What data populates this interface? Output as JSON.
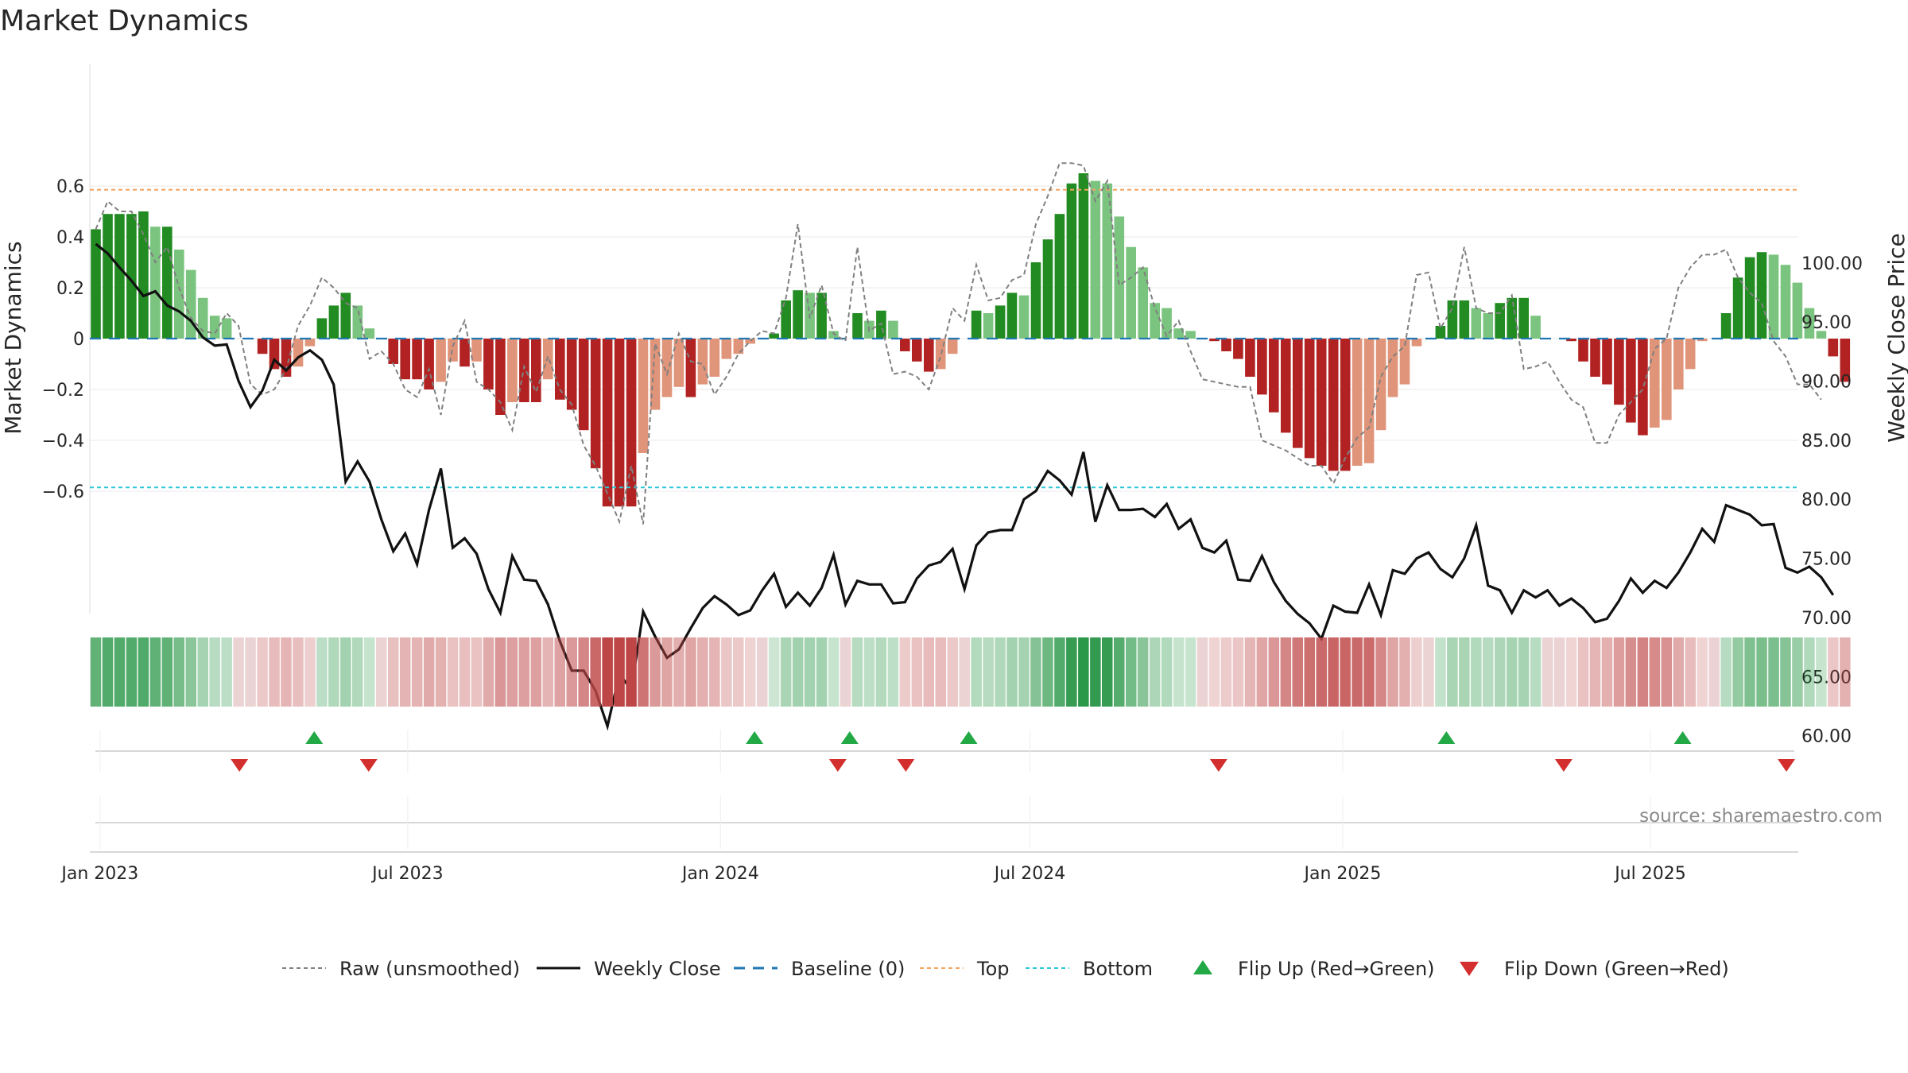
{
  "title": "Market Dynamics",
  "source": "source: sharemaestro.com",
  "colors": {
    "strong_pos": "#228b22",
    "weak_pos": "#7bc47f",
    "strong_neg": "#b22222",
    "weak_neg": "#e0957a",
    "raw": "#808080",
    "close": "#111111",
    "baseline": "#1f77b4",
    "top": "#f4a460",
    "bottom": "#2ec7d6",
    "flip_up": "#22a845",
    "flip_down": "#d32f2f"
  },
  "legend": [
    {
      "key": "raw",
      "label": "Raw (unsmoothed)"
    },
    {
      "key": "close",
      "label": "Weekly Close"
    },
    {
      "key": "baseline",
      "label": "Baseline (0)"
    },
    {
      "key": "top",
      "label": "Top"
    },
    {
      "key": "bottom",
      "label": "Bottom"
    },
    {
      "key": "flip_up",
      "label": "Flip Up (Red→Green)"
    },
    {
      "key": "flip_down",
      "label": "Flip Down (Green→Red)"
    }
  ],
  "chart_data": {
    "type": "bar",
    "title": "Market Dynamics",
    "ylabel": "Market Dynamics",
    "y2label": "Weekly Close Price",
    "ylim": [
      -0.72,
      0.72
    ],
    "y2lim": [
      57.0,
      103.0
    ],
    "y_ticks": [
      0.6,
      0.4,
      0.2,
      0,
      -0.2,
      -0.4,
      -0.6
    ],
    "y_tick_labels": [
      "0.6",
      "0.4",
      "0.2",
      "0",
      "−0.2",
      "−0.4",
      "−0.6"
    ],
    "y2_ticks": [
      100,
      95,
      90,
      85,
      80,
      75,
      70,
      65,
      60
    ],
    "y2_tick_labels": [
      "100.00",
      "95.00",
      "90.00",
      "85.00",
      "80.00",
      "75.00",
      "70.00",
      "65.00",
      "60.00"
    ],
    "x_range": [
      "2022-12-26",
      "2025-09-26"
    ],
    "x_ticks": [
      {
        "date": "2023-01-01",
        "label": "Jan 2023"
      },
      {
        "date": "2023-07-01",
        "label": "Jul 2023"
      },
      {
        "date": "2024-01-01",
        "label": "Jan 2024"
      },
      {
        "date": "2024-07-01",
        "label": "Jul 2024"
      },
      {
        "date": "2025-01-01",
        "label": "Jan 2025"
      },
      {
        "date": "2025-07-01",
        "label": "Jul 2025"
      }
    ],
    "start_week": "2022-12-26",
    "top_level": 0.585,
    "bottom_level": -0.585,
    "grid": true,
    "legend_position": "bottom",
    "momentum": [
      0.43,
      0.49,
      0.49,
      0.49,
      0.5,
      0.44,
      0.44,
      0.35,
      0.27,
      0.16,
      0.09,
      0.08,
      0,
      0,
      -0.06,
      -0.12,
      -0.15,
      -0.11,
      -0.03,
      0.08,
      0.13,
      0.18,
      0.13,
      0.04,
      0,
      -0.1,
      -0.16,
      -0.16,
      -0.2,
      -0.17,
      -0.09,
      -0.11,
      -0.09,
      -0.2,
      -0.3,
      -0.25,
      -0.25,
      -0.25,
      -0.16,
      -0.24,
      -0.28,
      -0.36,
      -0.51,
      -0.66,
      -0.66,
      -0.66,
      -0.45,
      -0.28,
      -0.23,
      -0.19,
      -0.23,
      -0.18,
      -0.15,
      -0.08,
      -0.06,
      -0.02,
      0,
      0.02,
      0.15,
      0.19,
      0.18,
      0.18,
      0.03,
      0,
      0.1,
      0.07,
      0.11,
      0.07,
      -0.05,
      -0.09,
      -0.13,
      -0.12,
      -0.06,
      0,
      0.11,
      0.1,
      0.13,
      0.18,
      0.17,
      0.3,
      0.39,
      0.49,
      0.61,
      0.65,
      0.62,
      0.61,
      0.48,
      0.36,
      0.28,
      0.14,
      0.12,
      0.04,
      0.03,
      0,
      -0.01,
      -0.05,
      -0.08,
      -0.15,
      -0.22,
      -0.29,
      -0.37,
      -0.43,
      -0.47,
      -0.5,
      -0.52,
      -0.52,
      -0.5,
      -0.49,
      -0.36,
      -0.23,
      -0.18,
      -0.03,
      0,
      0.05,
      0.15,
      0.15,
      0.12,
      0.1,
      0.14,
      0.16,
      0.16,
      0.09,
      0,
      0,
      -0.01,
      -0.09,
      -0.15,
      -0.18,
      -0.26,
      -0.33,
      -0.38,
      -0.35,
      -0.32,
      -0.2,
      -0.12,
      -0.01,
      0,
      0.1,
      0.24,
      0.32,
      0.34,
      0.33,
      0.29,
      0.22,
      0.12,
      0.03,
      -0.07,
      -0.17
    ],
    "raw": [
      0.43,
      0.54,
      0.5,
      0.5,
      0.41,
      0.3,
      0.36,
      0.2,
      0.08,
      0.03,
      0.02,
      0.1,
      0.05,
      -0.18,
      -0.22,
      -0.2,
      -0.12,
      0.05,
      0.13,
      0.24,
      0.2,
      0.14,
      0.12,
      -0.08,
      -0.05,
      -0.1,
      -0.2,
      -0.23,
      -0.12,
      -0.3,
      -0.03,
      0.07,
      -0.17,
      -0.2,
      -0.25,
      -0.36,
      -0.11,
      -0.21,
      -0.07,
      -0.2,
      -0.26,
      -0.42,
      -0.5,
      -0.61,
      -0.72,
      -0.5,
      -0.73,
      -0.02,
      -0.14,
      0.02,
      -0.09,
      -0.1,
      -0.22,
      -0.15,
      -0.06,
      -0.01,
      0.03,
      0.02,
      0.16,
      0.45,
      0.08,
      0.21,
      0.02,
      -0.01,
      0.36,
      0.03,
      0.06,
      -0.14,
      -0.13,
      -0.15,
      -0.2,
      -0.07,
      0.12,
      0.07,
      0.29,
      0.15,
      0.16,
      0.23,
      0.25,
      0.45,
      0.56,
      0.69,
      0.69,
      0.68,
      0.54,
      0.62,
      0.21,
      0.24,
      0.28,
      0.12,
      0.01,
      0.07,
      -0.05,
      -0.16,
      -0.17,
      -0.18,
      -0.19,
      -0.19,
      -0.4,
      -0.42,
      -0.44,
      -0.47,
      -0.5,
      -0.5,
      -0.57,
      -0.47,
      -0.39,
      -0.35,
      -0.15,
      -0.07,
      -0.03,
      0.25,
      0.26,
      0.04,
      0.12,
      0.36,
      0.12,
      0.1,
      0.1,
      0.17,
      -0.12,
      -0.11,
      -0.09,
      -0.17,
      -0.24,
      -0.27,
      -0.41,
      -0.41,
      -0.3,
      -0.25,
      -0.2,
      -0.04,
      0,
      0.2,
      0.28,
      0.33,
      0.33,
      0.35,
      0.24,
      0.18,
      0.14,
      -0.01,
      -0.07,
      -0.18,
      -0.18,
      -0.24
    ],
    "close": [
      101.6,
      100.8,
      99.6,
      98.5,
      97.2,
      97.6,
      96.4,
      95.9,
      95.1,
      93.7,
      93.0,
      93.1,
      90.0,
      87.8,
      89.2,
      91.8,
      90.9,
      92.0,
      92.6,
      91.8,
      89.7,
      81.5,
      83.2,
      81.5,
      78.3,
      75.6,
      77.1,
      74.5,
      79.1,
      82.6,
      75.9,
      76.7,
      75.4,
      72.4,
      70.4,
      75.2,
      73.2,
      73.1,
      71.1,
      68.0,
      65.5,
      65.5,
      63.8,
      60.8,
      65.2,
      63.9,
      70.5,
      68.4,
      66.6,
      67.3,
      69.1,
      70.8,
      71.8,
      71.1,
      70.2,
      70.6,
      72.3,
      73.7,
      70.9,
      72.1,
      71.0,
      72.5,
      75.3,
      71.1,
      73.1,
      72.8,
      72.8,
      71.2,
      71.3,
      73.3,
      74.4,
      74.7,
      75.8,
      72.4,
      76.1,
      77.2,
      77.4,
      77.4,
      80.0,
      80.7,
      82.4,
      81.6,
      80.4,
      84.0,
      78.1,
      81.2,
      79.1,
      79.1,
      79.2,
      78.5,
      79.6,
      77.5,
      78.3,
      75.9,
      75.5,
      76.5,
      73.2,
      73.1,
      75.2,
      73.0,
      71.4,
      70.3,
      69.5,
      68.2,
      71.0,
      70.5,
      70.4,
      72.8,
      70.2,
      74.0,
      73.7,
      75.0,
      75.5,
      74.1,
      73.4,
      75.0,
      77.8,
      72.7,
      72.3,
      70.4,
      72.3,
      71.7,
      72.3,
      71.0,
      71.6,
      70.8,
      69.6,
      69.9,
      71.4,
      73.3,
      72.1,
      73.1,
      72.5,
      73.8,
      75.5,
      77.5,
      76.4,
      79.5,
      79.1,
      78.7,
      77.8,
      77.9,
      74.2,
      73.8,
      74.3,
      73.4,
      71.9
    ],
    "flips_up": [
      "2023-05-07",
      "2024-01-21",
      "2024-03-17",
      "2024-05-26",
      "2025-03-03",
      "2025-07-20"
    ],
    "flips_down": [
      "2023-03-24",
      "2023-06-08",
      "2024-03-10",
      "2024-04-19",
      "2024-10-20",
      "2025-05-11",
      "2025-09-19"
    ]
  }
}
